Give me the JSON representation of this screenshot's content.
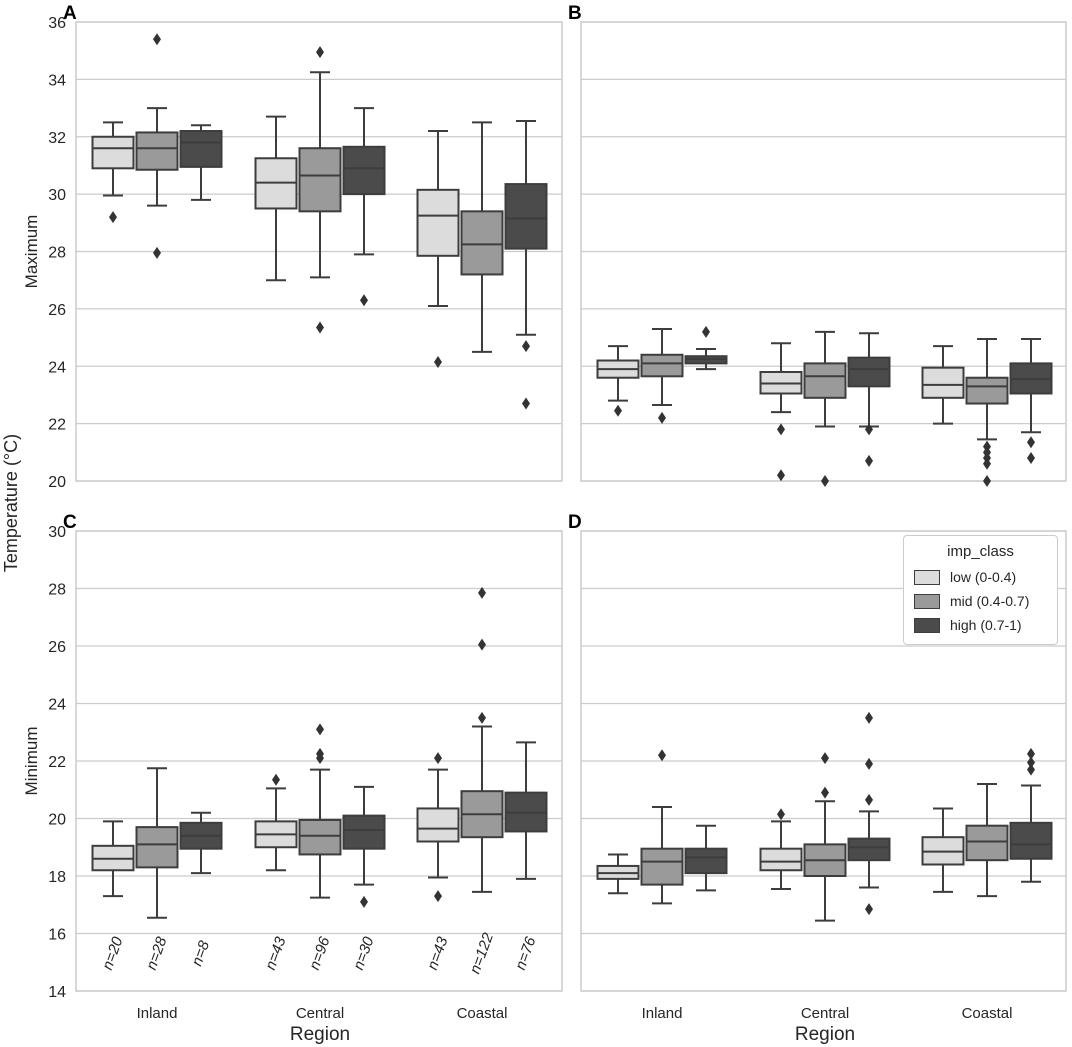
{
  "figure": {
    "y_label": "Temperature (°C)"
  },
  "colors": {
    "low": "#dcdcdc",
    "mid": "#9a9a9a",
    "high": "#4b4b4b",
    "edge": "#3d3d3d",
    "grid": "#cccccc"
  },
  "legend": {
    "title": "imp_class",
    "items": [
      {
        "key": "low",
        "label": "low (0-0.4)"
      },
      {
        "key": "mid",
        "label": "mid (0.4-0.7)"
      },
      {
        "key": "high",
        "label": "high (0.7-1)"
      }
    ]
  },
  "chart_data": [
    {
      "panel": "A",
      "type": "box",
      "ylabel": "Maximum",
      "ylim": [
        20,
        36
      ],
      "yticks": [
        20,
        22,
        24,
        26,
        28,
        30,
        32,
        34,
        36
      ],
      "categories": [
        "Inland",
        "Central",
        "Coastal"
      ],
      "series": [
        "low",
        "mid",
        "high"
      ],
      "boxes": [
        {
          "region": "Inland",
          "class": "low",
          "q1": 30.9,
          "median": 31.6,
          "q3": 32.0,
          "whisker_low": 29.95,
          "whisker_high": 32.5,
          "outliers": [
            29.2
          ]
        },
        {
          "region": "Inland",
          "class": "mid",
          "q1": 30.85,
          "median": 31.6,
          "q3": 32.15,
          "whisker_low": 29.6,
          "whisker_high": 33.0,
          "outliers": [
            27.95,
            35.4
          ]
        },
        {
          "region": "Inland",
          "class": "high",
          "q1": 30.95,
          "median": 31.8,
          "q3": 32.2,
          "whisker_low": 29.8,
          "whisker_high": 32.4,
          "outliers": []
        },
        {
          "region": "Central",
          "class": "low",
          "q1": 29.5,
          "median": 30.4,
          "q3": 31.25,
          "whisker_low": 27.0,
          "whisker_high": 32.7,
          "outliers": []
        },
        {
          "region": "Central",
          "class": "mid",
          "q1": 29.4,
          "median": 30.65,
          "q3": 31.6,
          "whisker_low": 27.1,
          "whisker_high": 34.25,
          "outliers": [
            25.35,
            34.95
          ]
        },
        {
          "region": "Central",
          "class": "high",
          "q1": 30.0,
          "median": 30.9,
          "q3": 31.65,
          "whisker_low": 27.9,
          "whisker_high": 33.0,
          "outliers": [
            26.3
          ]
        },
        {
          "region": "Coastal",
          "class": "low",
          "q1": 27.85,
          "median": 29.25,
          "q3": 30.15,
          "whisker_low": 26.1,
          "whisker_high": 32.2,
          "outliers": [
            24.15
          ]
        },
        {
          "region": "Coastal",
          "class": "mid",
          "q1": 27.2,
          "median": 28.25,
          "q3": 29.4,
          "whisker_low": 24.5,
          "whisker_high": 32.5,
          "outliers": []
        },
        {
          "region": "Coastal",
          "class": "high",
          "q1": 28.1,
          "median": 29.15,
          "q3": 30.35,
          "whisker_low": 25.1,
          "whisker_high": 32.55,
          "outliers": [
            24.7,
            22.7
          ]
        }
      ]
    },
    {
      "panel": "B",
      "type": "box",
      "ylabel": "",
      "ylim": [
        20,
        36
      ],
      "yticks": [
        20,
        22,
        24,
        26,
        28,
        30,
        32,
        34,
        36
      ],
      "categories": [
        "Inland",
        "Central",
        "Coastal"
      ],
      "series": [
        "low",
        "mid",
        "high"
      ],
      "boxes": [
        {
          "region": "Inland",
          "class": "low",
          "q1": 23.6,
          "median": 23.9,
          "q3": 24.2,
          "whisker_low": 22.8,
          "whisker_high": 24.7,
          "outliers": [
            22.45
          ]
        },
        {
          "region": "Inland",
          "class": "mid",
          "q1": 23.65,
          "median": 24.1,
          "q3": 24.4,
          "whisker_low": 22.65,
          "whisker_high": 25.3,
          "outliers": [
            22.2
          ]
        },
        {
          "region": "Inland",
          "class": "high",
          "q1": 24.1,
          "median": 24.25,
          "q3": 24.35,
          "whisker_low": 23.9,
          "whisker_high": 24.6,
          "outliers": [
            25.2
          ]
        },
        {
          "region": "Central",
          "class": "low",
          "q1": 23.05,
          "median": 23.4,
          "q3": 23.8,
          "whisker_low": 22.4,
          "whisker_high": 24.8,
          "outliers": [
            21.8,
            20.2
          ]
        },
        {
          "region": "Central",
          "class": "mid",
          "q1": 22.9,
          "median": 23.65,
          "q3": 24.1,
          "whisker_low": 21.9,
          "whisker_high": 25.2,
          "outliers": [
            20.0
          ]
        },
        {
          "region": "Central",
          "class": "high",
          "q1": 23.3,
          "median": 23.9,
          "q3": 24.3,
          "whisker_low": 21.9,
          "whisker_high": 25.15,
          "outliers": [
            21.8,
            20.7
          ]
        },
        {
          "region": "Coastal",
          "class": "low",
          "q1": 22.9,
          "median": 23.35,
          "q3": 23.95,
          "whisker_low": 22.0,
          "whisker_high": 24.7,
          "outliers": []
        },
        {
          "region": "Coastal",
          "class": "mid",
          "q1": 22.7,
          "median": 23.3,
          "q3": 23.6,
          "whisker_low": 21.45,
          "whisker_high": 24.95,
          "outliers": [
            21.2,
            21.0,
            20.8,
            20.6,
            20.0
          ]
        },
        {
          "region": "Coastal",
          "class": "high",
          "q1": 23.05,
          "median": 23.55,
          "q3": 24.1,
          "whisker_low": 21.7,
          "whisker_high": 24.95,
          "outliers": [
            21.35,
            20.8
          ]
        }
      ]
    },
    {
      "panel": "C",
      "type": "box",
      "ylabel": "Minimum",
      "ylim": [
        14,
        30
      ],
      "yticks": [
        14,
        16,
        18,
        20,
        22,
        24,
        26,
        28,
        30
      ],
      "categories": [
        "Inland",
        "Central",
        "Coastal"
      ],
      "xlabel": "Region",
      "series": [
        "low",
        "mid",
        "high"
      ],
      "boxes": [
        {
          "region": "Inland",
          "class": "low",
          "n": "n=20",
          "q1": 18.2,
          "median": 18.6,
          "q3": 19.05,
          "whisker_low": 17.3,
          "whisker_high": 19.9,
          "outliers": []
        },
        {
          "region": "Inland",
          "class": "mid",
          "n": "n=28",
          "q1": 18.3,
          "median": 19.1,
          "q3": 19.7,
          "whisker_low": 16.55,
          "whisker_high": 21.75,
          "outliers": []
        },
        {
          "region": "Inland",
          "class": "high",
          "n": "n=8",
          "q1": 18.95,
          "median": 19.4,
          "q3": 19.85,
          "whisker_low": 18.1,
          "whisker_high": 20.2,
          "outliers": []
        },
        {
          "region": "Central",
          "class": "low",
          "n": "n=43",
          "q1": 19.0,
          "median": 19.45,
          "q3": 19.9,
          "whisker_low": 18.2,
          "whisker_high": 21.05,
          "outliers": [
            21.35
          ]
        },
        {
          "region": "Central",
          "class": "mid",
          "n": "n=96",
          "q1": 18.75,
          "median": 19.4,
          "q3": 19.95,
          "whisker_low": 17.25,
          "whisker_high": 21.7,
          "outliers": [
            22.1,
            22.25,
            23.1
          ]
        },
        {
          "region": "Central",
          "class": "high",
          "n": "n=30",
          "q1": 18.95,
          "median": 19.6,
          "q3": 20.1,
          "whisker_low": 17.7,
          "whisker_high": 21.1,
          "outliers": [
            17.1
          ]
        },
        {
          "region": "Coastal",
          "class": "low",
          "n": "n=43",
          "q1": 19.2,
          "median": 19.65,
          "q3": 20.35,
          "whisker_low": 17.95,
          "whisker_high": 21.7,
          "outliers": [
            22.1,
            17.3
          ]
        },
        {
          "region": "Coastal",
          "class": "mid",
          "n": "n=122",
          "q1": 19.35,
          "median": 20.15,
          "q3": 20.95,
          "whisker_low": 17.45,
          "whisker_high": 23.2,
          "outliers": [
            23.5,
            26.05,
            27.85
          ]
        },
        {
          "region": "Coastal",
          "class": "high",
          "n": "n=76",
          "q1": 19.55,
          "median": 20.2,
          "q3": 20.9,
          "whisker_low": 17.9,
          "whisker_high": 22.65,
          "outliers": []
        }
      ]
    },
    {
      "panel": "D",
      "type": "box",
      "ylabel": "",
      "ylim": [
        14,
        30
      ],
      "yticks": [
        14,
        16,
        18,
        20,
        22,
        24,
        26,
        28,
        30
      ],
      "categories": [
        "Inland",
        "Central",
        "Coastal"
      ],
      "xlabel": "Region",
      "series": [
        "low",
        "mid",
        "high"
      ],
      "boxes": [
        {
          "region": "Inland",
          "class": "low",
          "q1": 17.9,
          "median": 18.1,
          "q3": 18.35,
          "whisker_low": 17.4,
          "whisker_high": 18.75,
          "outliers": []
        },
        {
          "region": "Inland",
          "class": "mid",
          "q1": 17.7,
          "median": 18.5,
          "q3": 18.95,
          "whisker_low": 17.05,
          "whisker_high": 20.4,
          "outliers": [
            22.2
          ]
        },
        {
          "region": "Inland",
          "class": "high",
          "q1": 18.1,
          "median": 18.65,
          "q3": 18.95,
          "whisker_low": 17.5,
          "whisker_high": 19.75,
          "outliers": []
        },
        {
          "region": "Central",
          "class": "low",
          "q1": 18.2,
          "median": 18.5,
          "q3": 18.95,
          "whisker_low": 17.55,
          "whisker_high": 19.9,
          "outliers": [
            20.15
          ]
        },
        {
          "region": "Central",
          "class": "mid",
          "q1": 18.0,
          "median": 18.55,
          "q3": 19.1,
          "whisker_low": 16.45,
          "whisker_high": 20.6,
          "outliers": [
            20.9,
            22.1
          ]
        },
        {
          "region": "Central",
          "class": "high",
          "q1": 18.55,
          "median": 19.0,
          "q3": 19.3,
          "whisker_low": 17.6,
          "whisker_high": 20.25,
          "outliers": [
            16.85,
            20.65,
            21.9,
            23.5
          ]
        },
        {
          "region": "Coastal",
          "class": "low",
          "q1": 18.4,
          "median": 18.85,
          "q3": 19.35,
          "whisker_low": 17.45,
          "whisker_high": 20.35,
          "outliers": []
        },
        {
          "region": "Coastal",
          "class": "mid",
          "q1": 18.55,
          "median": 19.2,
          "q3": 19.75,
          "whisker_low": 17.3,
          "whisker_high": 21.2,
          "outliers": []
        },
        {
          "region": "Coastal",
          "class": "high",
          "q1": 18.6,
          "median": 19.1,
          "q3": 19.85,
          "whisker_low": 17.8,
          "whisker_high": 21.15,
          "outliers": [
            21.7,
            21.95,
            22.25
          ]
        }
      ]
    }
  ]
}
